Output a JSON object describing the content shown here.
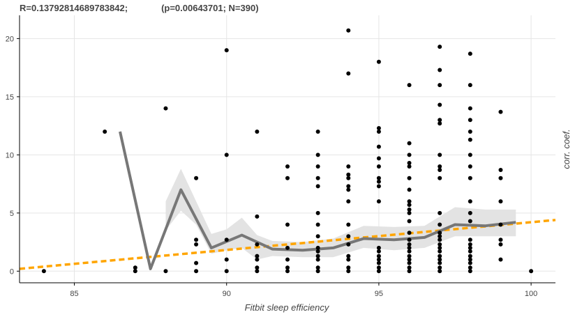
{
  "stats": {
    "r_text": "R=0.13792814689783842;",
    "p_text": "(p=0.00643701; N=390)"
  },
  "chart_data": {
    "type": "scatter",
    "xlabel": "Fitbit sleep efficiency",
    "ylabel": "corr. coef.",
    "xlim": [
      83.2,
      100.8
    ],
    "ylim": [
      -1,
      22
    ],
    "xticks": [
      85,
      90,
      95,
      100
    ],
    "yticks": [
      0,
      5,
      10,
      15,
      20
    ],
    "grid": true,
    "colors": {
      "points": "#000000",
      "mean_line": "#777777",
      "band": "#e3e3e3",
      "trend": "#ffa500",
      "grid": "#e5e5e5"
    },
    "points": [
      [
        84,
        0
      ],
      [
        86,
        12
      ],
      [
        87,
        0.3
      ],
      [
        87,
        0
      ],
      [
        88,
        14
      ],
      [
        88,
        0
      ],
      [
        89,
        8
      ],
      [
        89,
        2.7
      ],
      [
        89,
        2.3
      ],
      [
        89,
        0.7
      ],
      [
        89,
        0
      ],
      [
        90,
        19
      ],
      [
        90,
        10
      ],
      [
        90,
        2.7
      ],
      [
        90,
        1
      ],
      [
        90,
        0
      ],
      [
        91,
        12
      ],
      [
        91,
        4.7
      ],
      [
        91,
        2.3
      ],
      [
        91,
        1.3
      ],
      [
        91,
        1
      ],
      [
        91,
        0.3
      ],
      [
        91,
        0
      ],
      [
        92,
        9
      ],
      [
        92,
        8
      ],
      [
        92,
        4
      ],
      [
        92,
        2
      ],
      [
        92,
        1
      ],
      [
        92,
        0.3
      ],
      [
        92,
        0
      ],
      [
        93,
        12
      ],
      [
        93,
        10
      ],
      [
        93,
        9
      ],
      [
        93,
        8
      ],
      [
        93,
        7.3
      ],
      [
        93,
        5
      ],
      [
        93,
        4
      ],
      [
        93,
        3
      ],
      [
        93,
        2
      ],
      [
        93,
        1.7
      ],
      [
        93,
        1.3
      ],
      [
        93,
        1
      ],
      [
        93,
        0.3
      ],
      [
        93,
        0
      ],
      [
        94,
        20.7
      ],
      [
        94,
        17
      ],
      [
        94,
        9
      ],
      [
        94,
        8.3
      ],
      [
        94,
        8
      ],
      [
        94,
        7.3
      ],
      [
        94,
        7
      ],
      [
        94,
        6
      ],
      [
        94,
        4
      ],
      [
        94,
        3
      ],
      [
        94,
        2.3
      ],
      [
        94,
        1.3
      ],
      [
        94,
        1
      ],
      [
        94,
        0.3
      ],
      [
        94,
        0
      ],
      [
        95,
        18
      ],
      [
        95,
        12.3
      ],
      [
        95,
        12
      ],
      [
        95,
        10.7
      ],
      [
        95,
        9.7
      ],
      [
        95,
        9
      ],
      [
        95,
        8
      ],
      [
        95,
        7.7
      ],
      [
        95,
        7.3
      ],
      [
        95,
        6
      ],
      [
        95,
        2
      ],
      [
        95,
        1.7
      ],
      [
        95,
        1.3
      ],
      [
        95,
        1
      ],
      [
        95,
        0.7
      ],
      [
        95,
        0.3
      ],
      [
        95,
        0
      ],
      [
        96,
        16
      ],
      [
        96,
        11
      ],
      [
        96,
        10
      ],
      [
        96,
        9.3
      ],
      [
        96,
        9
      ],
      [
        96,
        8
      ],
      [
        96,
        7
      ],
      [
        96,
        6
      ],
      [
        96,
        5.7
      ],
      [
        96,
        5.3
      ],
      [
        96,
        5
      ],
      [
        96,
        4.3
      ],
      [
        96,
        3.3
      ],
      [
        96,
        2.7
      ],
      [
        96,
        2.3
      ],
      [
        96,
        2
      ],
      [
        96,
        1.7
      ],
      [
        96,
        1.3
      ],
      [
        96,
        1
      ],
      [
        96,
        0.7
      ],
      [
        96,
        0.3
      ],
      [
        96,
        0
      ],
      [
        97,
        19.3
      ],
      [
        97,
        17.3
      ],
      [
        97,
        16
      ],
      [
        97,
        14.3
      ],
      [
        97,
        13
      ],
      [
        97,
        12.7
      ],
      [
        97,
        10
      ],
      [
        97,
        9
      ],
      [
        97,
        8.7
      ],
      [
        97,
        8
      ],
      [
        97,
        5
      ],
      [
        97,
        4
      ],
      [
        97,
        3.3
      ],
      [
        97,
        3
      ],
      [
        97,
        2.7
      ],
      [
        97,
        2.3
      ],
      [
        97,
        2
      ],
      [
        97,
        1.7
      ],
      [
        97,
        1.3
      ],
      [
        97,
        1
      ],
      [
        97,
        0.7
      ],
      [
        97,
        0.3
      ],
      [
        97,
        0
      ],
      [
        98,
        18.7
      ],
      [
        98,
        16
      ],
      [
        98,
        14
      ],
      [
        98,
        13
      ],
      [
        98,
        12
      ],
      [
        98,
        11.3
      ],
      [
        98,
        10
      ],
      [
        98,
        9
      ],
      [
        98,
        8
      ],
      [
        98,
        6
      ],
      [
        98,
        5
      ],
      [
        98,
        4.3
      ],
      [
        98,
        2.7
      ],
      [
        98,
        2.3
      ],
      [
        98,
        2
      ],
      [
        98,
        1.7
      ],
      [
        98,
        1.3
      ],
      [
        98,
        1
      ],
      [
        98,
        0.7
      ],
      [
        98,
        0.3
      ],
      [
        98,
        0
      ],
      [
        99,
        13.7
      ],
      [
        99,
        8.7
      ],
      [
        99,
        8
      ],
      [
        99,
        6
      ],
      [
        99,
        4
      ],
      [
        99,
        2.7
      ],
      [
        99,
        2.3
      ],
      [
        99,
        1
      ],
      [
        100,
        0
      ]
    ],
    "mean_line": {
      "x": [
        86.5,
        87.5,
        88.5,
        89.5,
        90.5,
        91.5,
        92.5,
        93.5,
        94.5,
        95.5,
        96.5,
        97.5,
        98.5,
        99.5
      ],
      "y": [
        12,
        0.2,
        7,
        2,
        3.1,
        1.9,
        1.8,
        2,
        2.8,
        2.7,
        2.9,
        4,
        3.9,
        4.2
      ]
    },
    "band": {
      "x": [
        88,
        88.5,
        89,
        89.5,
        90,
        90.5,
        91,
        91.5,
        92.5,
        93.5,
        94.5,
        95.5,
        96.5,
        97.5,
        98.5,
        99.5
      ],
      "lower": [
        3.5,
        5.2,
        4,
        1.5,
        1.8,
        2,
        1,
        1.3,
        1.2,
        1.2,
        2,
        1.8,
        2,
        3,
        3,
        3
      ],
      "upper": [
        6,
        8.8,
        6,
        3.2,
        3.6,
        4.6,
        3.1,
        2.6,
        2.5,
        2.8,
        3.9,
        3.8,
        3.9,
        5.5,
        5.3,
        5.3
      ]
    },
    "trend": {
      "x": [
        83.2,
        100.8
      ],
      "y": [
        0.2,
        4.4
      ]
    }
  }
}
